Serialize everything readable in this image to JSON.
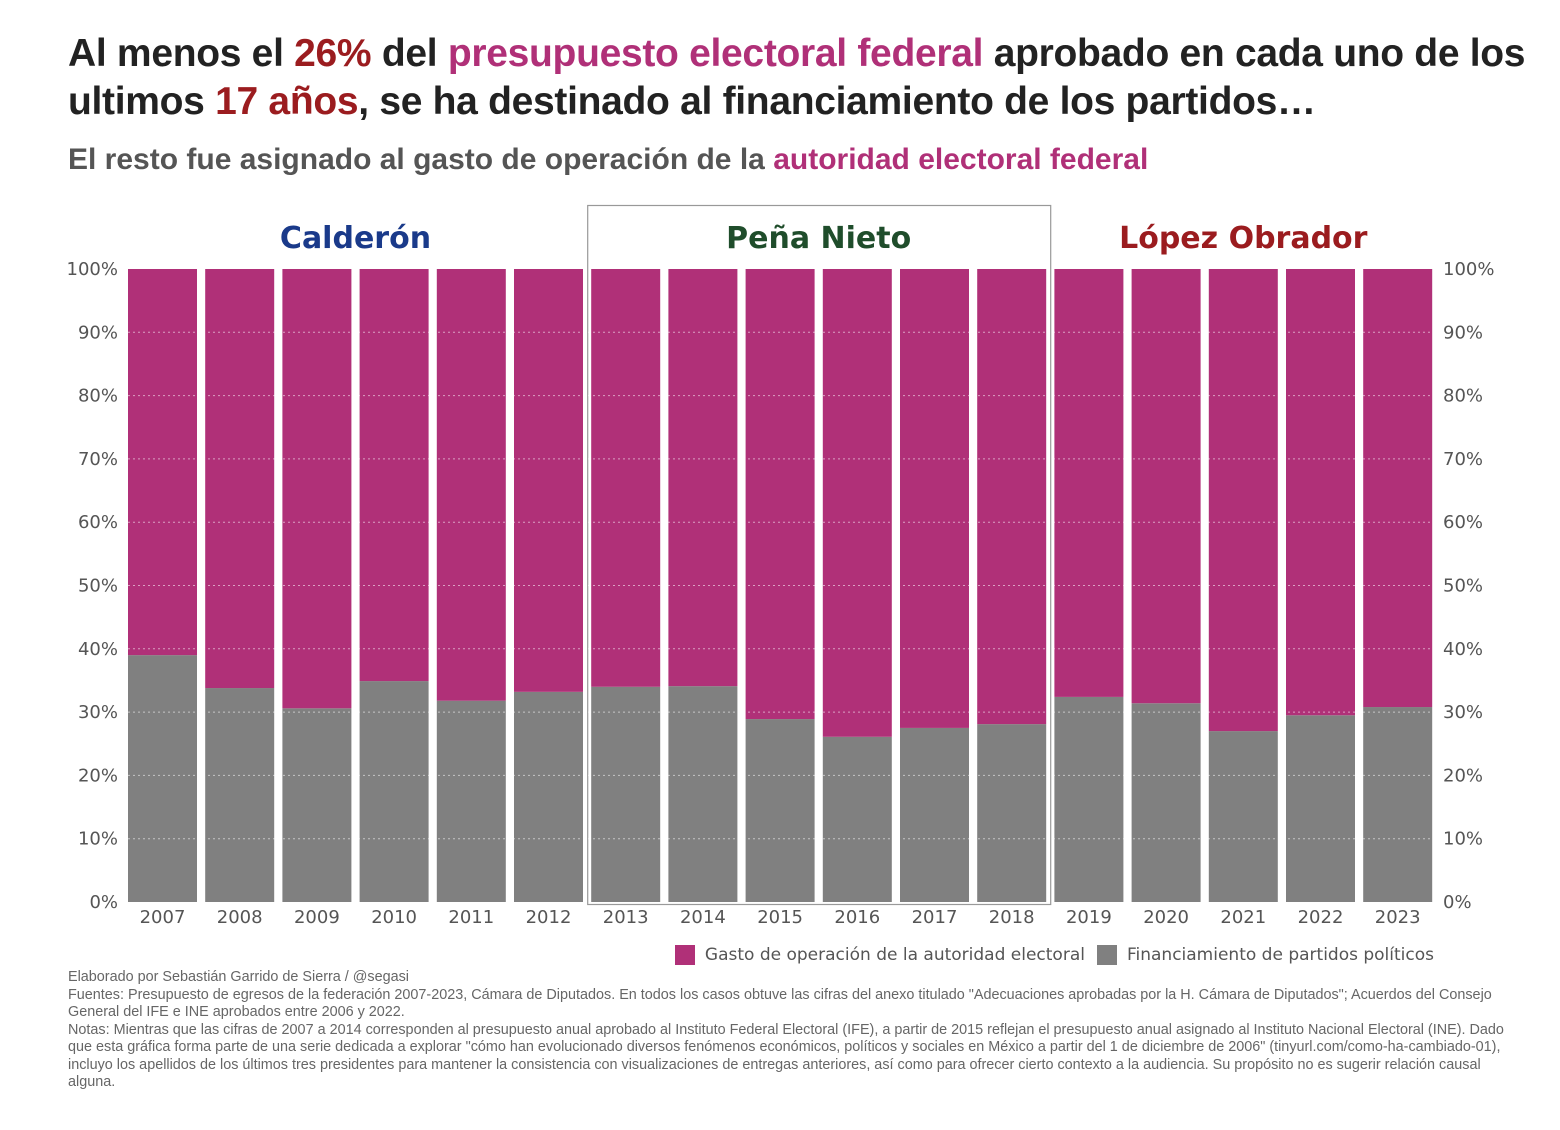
{
  "title": {
    "part1": "Al menos el ",
    "highlight1": "26%",
    "part2": " del ",
    "highlight2": "presupuesto electoral federal",
    "part3": " aprobado en cada uno de los ultimos ",
    "highlight3": "17 años",
    "part4": ", se ha destinado al financiamiento de los partidos…"
  },
  "subtitle": {
    "part1": "El resto fue asignado al gasto de operación de la ",
    "highlight": "autoridad electoral federal"
  },
  "colors": {
    "authority": "#b03078",
    "parties": "#808080",
    "calderon": "#1a3a8a",
    "pena_nieto": "#1f4d2b",
    "lopez_obrador": "#9b1c1f",
    "highlight_red": "#9b1c1f",
    "highlight_magenta": "#b03078"
  },
  "chart_data": {
    "type": "bar",
    "stacked": true,
    "normalized": true,
    "title": "Al menos el 26% del presupuesto electoral federal aprobado en cada uno de los ultimos 17 años, se ha destinado al financiamiento de los partidos…",
    "subtitle": "El resto fue asignado al gasto de operación de la autoridad electoral federal",
    "xlabel": "",
    "ylabel": "",
    "ylim": [
      0,
      100
    ],
    "y_ticks": [
      "0%",
      "10%",
      "20%",
      "30%",
      "40%",
      "50%",
      "60%",
      "70%",
      "80%",
      "90%",
      "100%"
    ],
    "y_tick_values": [
      0,
      10,
      20,
      30,
      40,
      50,
      60,
      70,
      80,
      90,
      100
    ],
    "y_axis_sides": [
      "left",
      "right"
    ],
    "grid": true,
    "categories": [
      "2007",
      "2008",
      "2009",
      "2010",
      "2011",
      "2012",
      "2013",
      "2014",
      "2015",
      "2016",
      "2017",
      "2018",
      "2019",
      "2020",
      "2021",
      "2022",
      "2023"
    ],
    "series": [
      {
        "name": "Financiamiento de partidos políticos",
        "color": "#808080",
        "values": [
          39.0,
          33.8,
          30.6,
          34.9,
          31.8,
          33.2,
          34.0,
          34.1,
          28.9,
          26.1,
          27.5,
          28.1,
          32.4,
          31.4,
          27.0,
          29.5,
          30.8
        ]
      },
      {
        "name": "Gasto de operación de la autoridad electoral",
        "color": "#b03078",
        "values": [
          61.0,
          66.2,
          69.4,
          65.1,
          68.2,
          66.8,
          66.0,
          65.9,
          71.1,
          73.9,
          72.5,
          71.9,
          67.6,
          68.6,
          73.0,
          70.5,
          69.2
        ]
      }
    ],
    "periods": [
      {
        "name": "Calderón",
        "from": "2007",
        "to": "2012",
        "color": "#1a3a8a",
        "boxed": false
      },
      {
        "name": "Peña Nieto",
        "from": "2013",
        "to": "2018",
        "color": "#1f4d2b",
        "boxed": true
      },
      {
        "name": "López Obrador",
        "from": "2019",
        "to": "2023",
        "color": "#9b1c1f",
        "boxed": false
      }
    ],
    "legend": {
      "placement": "bottom-right",
      "entries": [
        "Gasto de operación de la autoridad electoral",
        "Financiamiento de partidos políticos"
      ]
    }
  },
  "legend": {
    "authority_label": "Gasto de operación de la autoridad electoral",
    "parties_label": "Financiamiento de partidos políticos"
  },
  "footer": {
    "credit": "Elaborado por Sebastián Garrido de Sierra / @segasi",
    "sources": "Fuentes: Presupuesto de egresos de la federación 2007-2023, Cámara de Diputados. En todos los casos obtuve las cifras del anexo titulado \"Adecuaciones aprobadas por la H. Cámara de Diputados\"; Acuerdos del Consejo General del IFE e INE aprobados entre 2006 y 2022.",
    "notes": "Notas: Mientras que las cifras de 2007 a 2014 corresponden al presupuesto anual aprobado al Instituto Federal Electoral (IFE), a partir de 2015 reflejan el presupuesto anual asignado al Instituto Nacional Electoral (INE). Dado que esta gráfica forma parte de una serie dedicada a explorar \"cómo han evolucionado diversos fenómenos económicos, políticos y sociales en México a partir del 1 de diciembre de 2006\" (tinyurl.com/como-ha-cambiado-01), incluyo los apellidos de los últimos tres presidentes para mantener la consistencia con visualizaciones de entregas anteriores, así como para ofrecer cierto contexto a la audiencia. Su propósito no es sugerir relación causal alguna."
  }
}
